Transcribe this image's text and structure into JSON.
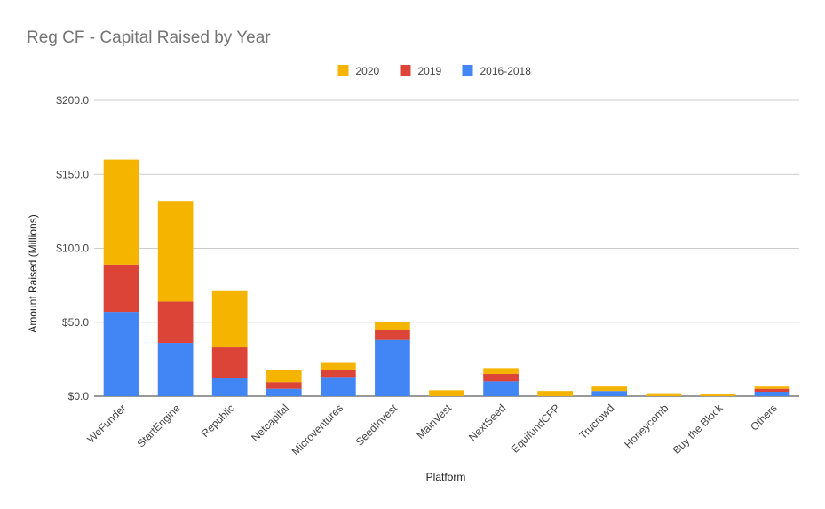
{
  "chart_data": {
    "type": "bar",
    "stacked": true,
    "title": "Reg CF - Capital Raised by Year",
    "xlabel": "Platform",
    "ylabel": "Amount Raised (Millions)",
    "ylim": [
      0,
      200
    ],
    "yticks": [
      {
        "value": 0,
        "label": "$0.0"
      },
      {
        "value": 50,
        "label": "$50.0"
      },
      {
        "value": 100,
        "label": "$100.0"
      },
      {
        "value": 150,
        "label": "$150.0"
      },
      {
        "value": 200,
        "label": "$200.0"
      }
    ],
    "grid": true,
    "legend_position": "top",
    "categories": [
      "WeFunder",
      "StartEngine",
      "Republic",
      "Netcapital",
      "Microventures",
      "SeedInvest",
      "MainVest",
      "NextSeed",
      "EquifundCFP",
      "Trucrowd",
      "Honeycomb",
      "Buy the Block",
      "Others"
    ],
    "series": [
      {
        "name": "2016-2018",
        "color": "#4285f4",
        "values": [
          57,
          36,
          12,
          5,
          13,
          38,
          0,
          10,
          0,
          3.5,
          0,
          0,
          3
        ]
      },
      {
        "name": "2019",
        "color": "#db4437",
        "values": [
          32,
          28,
          21,
          4.5,
          4.5,
          6.5,
          0,
          5,
          0,
          0,
          0,
          0,
          2
        ]
      },
      {
        "name": "2020",
        "color": "#f4b400",
        "values": [
          71,
          68,
          38,
          8.5,
          5,
          5.5,
          4,
          4,
          3.5,
          3,
          2,
          1.5,
          1.5
        ]
      }
    ],
    "legend_order": [
      2,
      1,
      0
    ]
  }
}
